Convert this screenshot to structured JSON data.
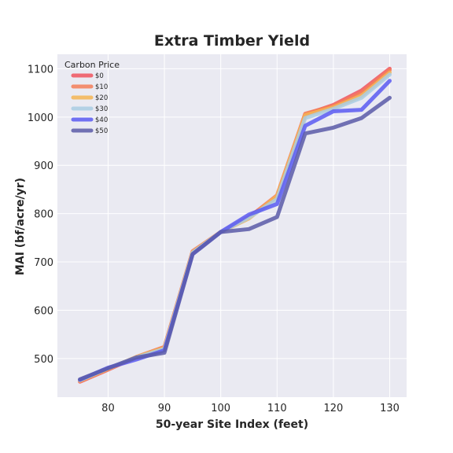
{
  "chart_data": {
    "type": "line",
    "title": "Extra Timber Yield",
    "xlabel": "50-year Site Index (feet)",
    "ylabel": "MAI (bf/acre/yr)",
    "xlim": [
      71,
      133
    ],
    "ylim": [
      420,
      1130
    ],
    "xticks": [
      80,
      90,
      100,
      110,
      120,
      130
    ],
    "yticks": [
      500,
      600,
      700,
      800,
      900,
      1000,
      1100
    ],
    "grid": true,
    "legend_title": "Carbon Price",
    "legend_position": "top-left",
    "x": [
      75,
      80,
      85,
      90,
      95,
      100,
      105,
      110,
      115,
      120,
      125,
      130
    ],
    "series": [
      {
        "name": "$0",
        "color": "#f0545e",
        "values": [
          452,
          477,
          503,
          523,
          720,
          762,
          793,
          835,
          1005,
          1025,
          1055,
          1100
        ]
      },
      {
        "name": "$10",
        "color": "#f47e58",
        "values": [
          453,
          478,
          503,
          524,
          722,
          762,
          792,
          838,
          1007,
          1023,
          1050,
          1097
        ]
      },
      {
        "name": "$20",
        "color": "#f5b553",
        "values": [
          454,
          479,
          503,
          522,
          720,
          762,
          790,
          836,
          1004,
          1020,
          1044,
          1092
        ]
      },
      {
        "name": "$30",
        "color": "#a9cce3",
        "values": [
          455,
          480,
          502,
          520,
          719,
          762,
          792,
          830,
          998,
          1017,
          1040,
          1088
        ]
      },
      {
        "name": "$40",
        "color": "#5b5bf2",
        "values": [
          456,
          481,
          498,
          517,
          716,
          762,
          798,
          820,
          982,
          1012,
          1015,
          1075
        ]
      },
      {
        "name": "$50",
        "color": "#5b5aa8",
        "values": [
          457,
          480,
          502,
          512,
          716,
          762,
          768,
          793,
          966,
          978,
          998,
          1040
        ]
      }
    ]
  }
}
